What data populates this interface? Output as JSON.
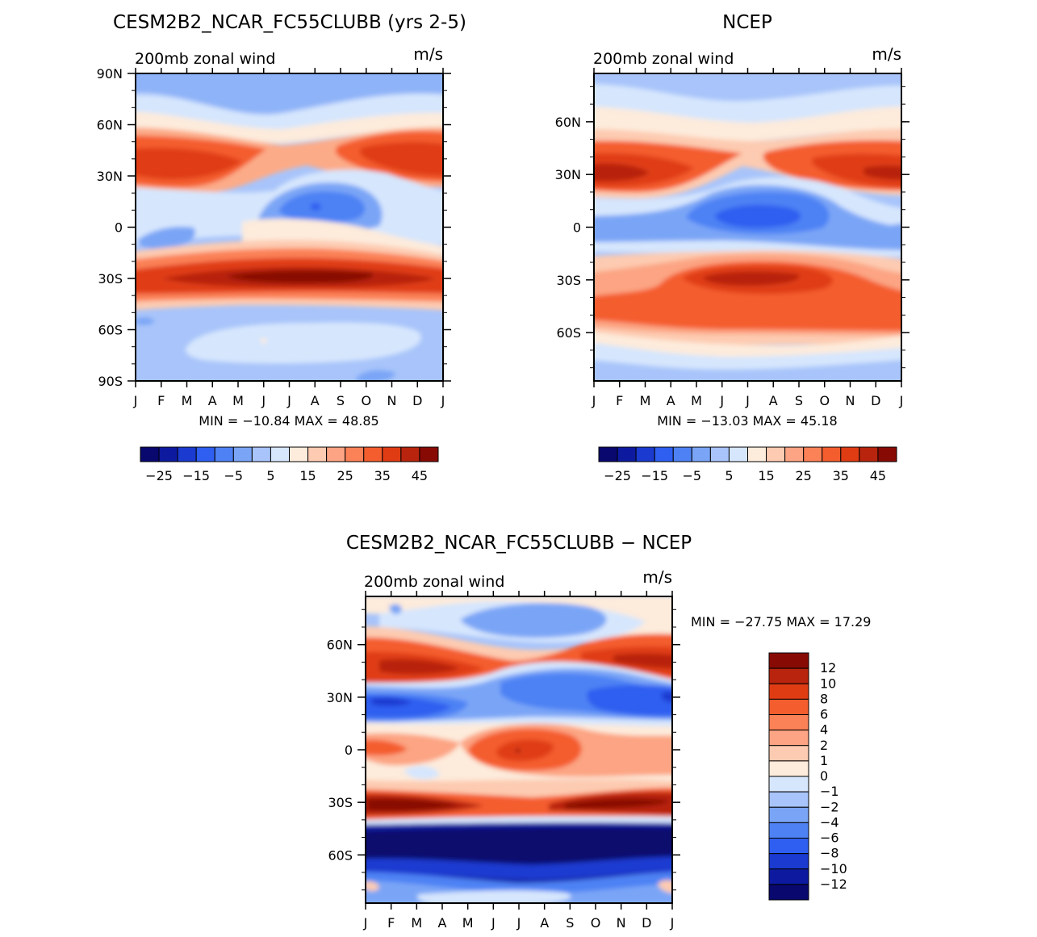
{
  "chart_data": [
    {
      "type": "heatmap",
      "id": "model",
      "title": "CESM2B2_NCAR_FC55CLUBB (yrs 2-5)",
      "subtitle": "200mb zonal wind",
      "units": "m/s",
      "xlabel": "",
      "ylabel": "",
      "x_tick_labels": [
        "J",
        "F",
        "M",
        "A",
        "M",
        "J",
        "J",
        "A",
        "S",
        "O",
        "N",
        "D",
        "J"
      ],
      "y_tick_labels": [
        "90N",
        "60N",
        "30N",
        "0",
        "30S",
        "60S",
        "90S"
      ],
      "y_tick_values": [
        90,
        60,
        30,
        0,
        -30,
        -60,
        -90
      ],
      "ylim": [
        -90,
        90
      ],
      "stats": "MIN = −10.84 MAX =   48.85",
      "min": -10.84,
      "max": 48.85,
      "colorbar": {
        "levels": [
          -30,
          -25,
          -20,
          -15,
          -10,
          -5,
          0,
          5,
          10,
          15,
          20,
          25,
          30,
          35,
          40,
          45,
          50
        ],
        "labels": [
          "−25",
          "−15",
          "−5",
          "5",
          "15",
          "25",
          "35",
          "45"
        ],
        "label_values": [
          -25,
          -15,
          -5,
          5,
          15,
          25,
          35,
          45
        ],
        "colors": [
          "#08086e",
          "#0d1aa0",
          "#1a3ad0",
          "#2e5ff0",
          "#4e82f4",
          "#7aa5f6",
          "#a8c4fa",
          "#d6e6fd",
          "#fdebdb",
          "#fdcbb1",
          "#fca483",
          "#fb8157",
          "#f45d2e",
          "#e03c14",
          "#b8240d",
          "#880a05"
        ]
      }
    },
    {
      "type": "heatmap",
      "id": "obs",
      "title": "NCEP",
      "subtitle": "200mb zonal wind",
      "units": "m/s",
      "xlabel": "",
      "ylabel": "",
      "x_tick_labels": [
        "J",
        "F",
        "M",
        "A",
        "M",
        "J",
        "J",
        "A",
        "S",
        "O",
        "N",
        "D",
        "J"
      ],
      "y_tick_labels": [
        "60N",
        "30N",
        "0",
        "30S",
        "60S"
      ],
      "y_tick_values": [
        60,
        30,
        0,
        -30,
        -60
      ],
      "ylim": [
        -87.5,
        87.5
      ],
      "stats": "MIN = −13.03 MAX =   45.18",
      "min": -13.03,
      "max": 45.18,
      "colorbar": {
        "levels": [
          -30,
          -25,
          -20,
          -15,
          -10,
          -5,
          0,
          5,
          10,
          15,
          20,
          25,
          30,
          35,
          40,
          45,
          50
        ],
        "labels": [
          "−25",
          "−15",
          "−5",
          "5",
          "15",
          "25",
          "35",
          "45"
        ],
        "label_values": [
          -25,
          -15,
          -5,
          5,
          15,
          25,
          35,
          45
        ],
        "colors": [
          "#08086e",
          "#0d1aa0",
          "#1a3ad0",
          "#2e5ff0",
          "#4e82f4",
          "#7aa5f6",
          "#a8c4fa",
          "#d6e6fd",
          "#fdebdb",
          "#fdcbb1",
          "#fca483",
          "#fb8157",
          "#f45d2e",
          "#e03c14",
          "#b8240d",
          "#880a05"
        ]
      }
    },
    {
      "type": "heatmap",
      "id": "diff",
      "title": "CESM2B2_NCAR_FC55CLUBB − NCEP",
      "subtitle": "200mb zonal wind",
      "units": "m/s",
      "xlabel": "",
      "ylabel": "",
      "x_tick_labels": [
        "J",
        "F",
        "M",
        "A",
        "M",
        "J",
        "J",
        "A",
        "S",
        "O",
        "N",
        "D",
        "J"
      ],
      "y_tick_labels": [
        "60N",
        "30N",
        "0",
        "30S",
        "60S"
      ],
      "y_tick_values": [
        60,
        30,
        0,
        -30,
        -60
      ],
      "ylim": [
        -87.5,
        87.5
      ],
      "stats": "MIN = −27.75 MAX =   17.29",
      "min": -27.75,
      "max": 17.29,
      "colorbar": {
        "labels": [
          "12",
          "10",
          "8",
          "6",
          "4",
          "2",
          "1",
          "0",
          "−1",
          "−2",
          "−4",
          "−6",
          "−8",
          "−10",
          "−12"
        ],
        "colors": [
          "#880a05",
          "#b8240d",
          "#e03c14",
          "#f45d2e",
          "#fb8157",
          "#fca483",
          "#fdcbb1",
          "#fdebdb",
          "#d6e6fd",
          "#a8c4fa",
          "#7aa5f6",
          "#4e82f4",
          "#2e5ff0",
          "#1a3ad0",
          "#0d1aa0",
          "#08086e"
        ]
      }
    }
  ]
}
